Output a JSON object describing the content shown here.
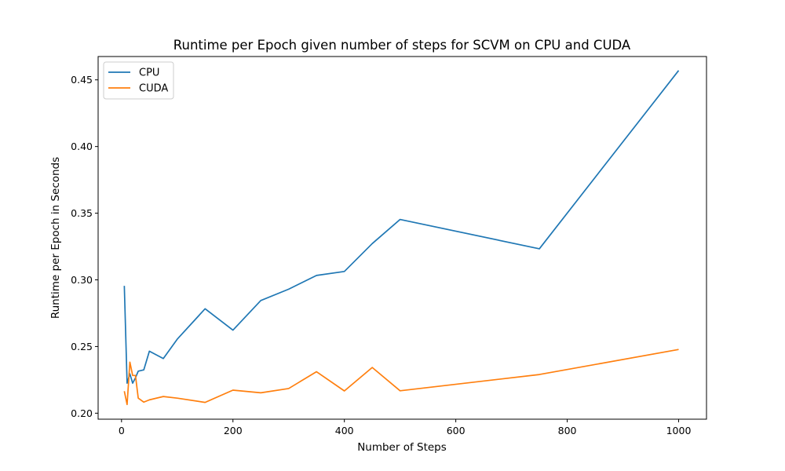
{
  "chart_data": {
    "type": "line",
    "title": "Runtime per Epoch given number of steps for SCVM on CPU and CUDA",
    "xlabel": "Number of Steps",
    "ylabel": "Runtime per Epoch in Seconds",
    "xlim": [
      -42,
      1050
    ],
    "ylim": [
      0.1955,
      0.4675
    ],
    "xticks": [
      0,
      200,
      400,
      600,
      800,
      1000
    ],
    "yticks": [
      0.2,
      0.25,
      0.3,
      0.35,
      0.4,
      0.45
    ],
    "xtick_labels": [
      "0",
      "200",
      "400",
      "600",
      "800",
      "1000"
    ],
    "ytick_labels": [
      "0.20",
      "0.25",
      "0.30",
      "0.35",
      "0.40",
      "0.45"
    ],
    "grid": false,
    "legend_position": "top-left",
    "series": [
      {
        "name": "CPU",
        "color": "#1f77b4",
        "x": [
          5,
          10,
          15,
          20,
          25,
          30,
          40,
          50,
          75,
          100,
          150,
          200,
          250,
          300,
          350,
          400,
          450,
          500,
          750,
          1000
        ],
        "y": [
          0.2955,
          0.2225,
          0.2295,
          0.2225,
          0.2265,
          0.2315,
          0.2325,
          0.2465,
          0.241,
          0.2555,
          0.2783,
          0.2623,
          0.2845,
          0.293,
          0.3033,
          0.3063,
          0.3272,
          0.3453,
          0.3233,
          0.457
        ]
      },
      {
        "name": "CUDA",
        "color": "#ff7f0e",
        "x": [
          5,
          10,
          15,
          20,
          25,
          30,
          40,
          50,
          75,
          100,
          150,
          200,
          250,
          300,
          350,
          400,
          450,
          500,
          750,
          1000
        ],
        "y": [
          0.2165,
          0.2065,
          0.2383,
          0.2283,
          0.2283,
          0.2113,
          0.2083,
          0.21,
          0.2125,
          0.2113,
          0.2081,
          0.2173,
          0.2153,
          0.2185,
          0.2311,
          0.2167,
          0.2343,
          0.2168,
          0.229,
          0.2478
        ]
      }
    ]
  }
}
